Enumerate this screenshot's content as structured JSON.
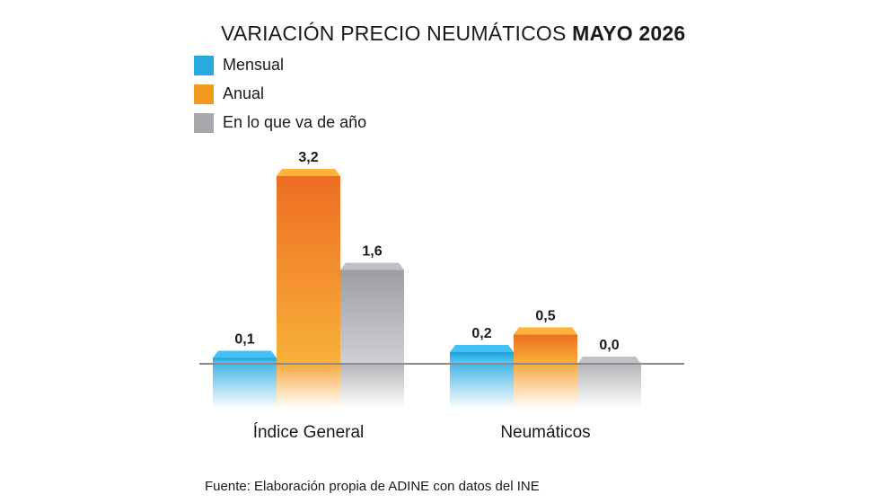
{
  "title": {
    "normal": "VARIACIÓN PRECIO NEUMÁTICOS ",
    "bold": "MAYO 2026"
  },
  "source": "Fuente: Elaboración propia de ADINE con datos del INE",
  "colors": {
    "mensual": "#2aa8e0",
    "anual": "#f39a1e",
    "en_lo_que_va": "#a7a8ab"
  },
  "chart_data": {
    "type": "bar",
    "categories": [
      "Índice General",
      "Neumáticos"
    ],
    "series": [
      {
        "name": "Mensual",
        "values": [
          0.1,
          0.2
        ],
        "labels": [
          "0,1",
          "0,2"
        ]
      },
      {
        "name": "Anual",
        "values": [
          3.2,
          0.5
        ],
        "labels": [
          "3,2",
          "0,5"
        ]
      },
      {
        "name": "En lo que va de año",
        "values": [
          1.6,
          0.0
        ],
        "labels": [
          "1,6",
          "0,0"
        ]
      }
    ],
    "legend_position": "top-left",
    "grid": false,
    "ylim": [
      0,
      3.2
    ]
  }
}
